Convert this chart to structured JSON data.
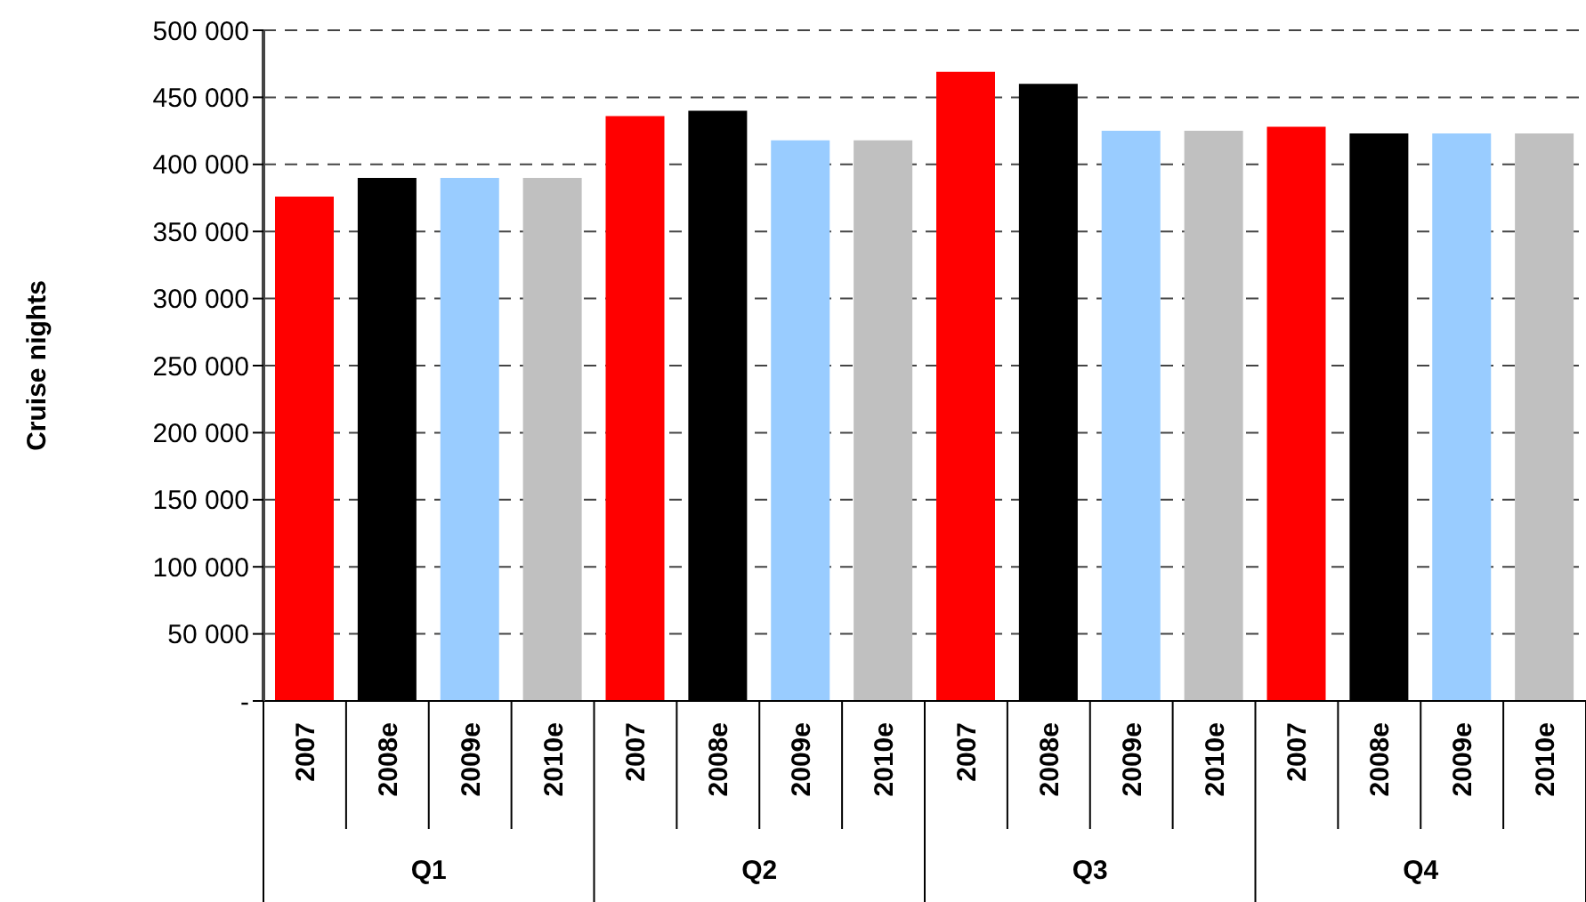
{
  "chart_data": {
    "type": "bar",
    "ylabel": "Cruise nights",
    "categories": [
      "2007",
      "2008e",
      "2009e",
      "2010e",
      "2007",
      "2008e",
      "2009e",
      "2010e",
      "2007",
      "2008e",
      "2009e",
      "2010e",
      "2007",
      "2008e",
      "2009e",
      "2010e"
    ],
    "values": [
      376000,
      390000,
      390000,
      390000,
      436000,
      440000,
      418000,
      418000,
      469000,
      460000,
      425000,
      425000,
      428000,
      423000,
      423000,
      423000
    ],
    "colors": [
      "#ff0000",
      "#000000",
      "#99ccff",
      "#c0c0c0",
      "#ff0000",
      "#000000",
      "#99ccff",
      "#c0c0c0",
      "#ff0000",
      "#000000",
      "#99ccff",
      "#c0c0c0",
      "#ff0000",
      "#000000",
      "#99ccff",
      "#c0c0c0"
    ],
    "annotations": [
      "Q1",
      "Q2",
      "Q3",
      "Q4"
    ],
    "ylim": [
      0,
      500000
    ],
    "yticks": [
      {
        "value": 0,
        "label": "-"
      },
      {
        "value": 50000,
        "label": "50 000"
      },
      {
        "value": 100000,
        "label": "100 000"
      },
      {
        "value": 150000,
        "label": "150 000"
      },
      {
        "value": 200000,
        "label": "200 000"
      },
      {
        "value": 250000,
        "label": "250 000"
      },
      {
        "value": 300000,
        "label": "300 000"
      },
      {
        "value": 350000,
        "label": "350 000"
      },
      {
        "value": 400000,
        "label": "400 000"
      },
      {
        "value": 450000,
        "label": "450 000"
      },
      {
        "value": 500000,
        "label": "500 000"
      }
    ],
    "grid": "y"
  }
}
